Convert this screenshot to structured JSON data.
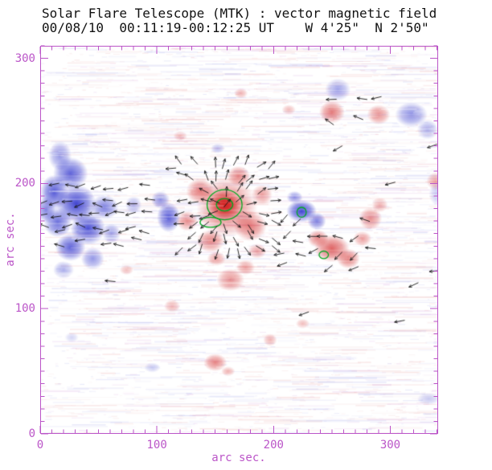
{
  "chart_data": {
    "type": "heatmap",
    "title": "Solar Flare Telescope (MTK) : vector magnetic field",
    "subtitle": "00/08/10  00:11:19-00:12:25 UT    W 4'25\"  N 2'50\"",
    "xlabel": "arc sec.",
    "ylabel": "arc sec.",
    "xlim": [
      0,
      341
    ],
    "ylim": [
      0,
      310
    ],
    "xticks": [
      0,
      100,
      200,
      300
    ],
    "yticks": [
      0,
      100,
      200,
      300
    ],
    "minor_tick_step": 10,
    "grid": false,
    "colors": {
      "axis": "#bb55c8",
      "title": "#111111",
      "positive_rgb": "210,35,35",
      "negative_rgb": "45,50,205",
      "contour": "#00a820",
      "vector": "#151515",
      "background": "#ffffff"
    },
    "blob_format": "[polarity p=positive(red)/n=negative(blue), x_arcsec, y_arcsec, rx_arcsec, ry_arcsec, intensity]",
    "blobs": [
      [
        "n",
        17,
        222,
        10,
        12,
        0.5
      ],
      [
        "n",
        26,
        208,
        15,
        13,
        0.75
      ],
      [
        "n",
        12,
        193,
        12,
        14,
        0.8
      ],
      [
        "n",
        31,
        184,
        17,
        15,
        0.9
      ],
      [
        "n",
        15,
        169,
        12,
        12,
        0.7
      ],
      [
        "n",
        41,
        164,
        15,
        13,
        0.85
      ],
      [
        "n",
        55,
        181,
        12,
        10,
        0.6
      ],
      [
        "n",
        26,
        149,
        13,
        11,
        0.75
      ],
      [
        "n",
        45,
        140,
        10,
        9,
        0.5
      ],
      [
        "n",
        20,
        131,
        9,
        7,
        0.4
      ],
      [
        "n",
        61,
        160,
        8,
        8,
        0.45
      ],
      [
        "n",
        5,
        179,
        8,
        10,
        0.6
      ],
      [
        "n",
        80,
        183,
        7,
        7,
        0.35
      ],
      [
        "n",
        110,
        173,
        10,
        12,
        0.8
      ],
      [
        "n",
        103,
        187,
        8,
        7,
        0.55
      ],
      [
        "n",
        224,
        178,
        13,
        9,
        0.9
      ],
      [
        "n",
        237,
        170,
        8,
        7,
        0.6
      ],
      [
        "n",
        218,
        189,
        7,
        5,
        0.5
      ],
      [
        "n",
        318,
        255,
        14,
        10,
        0.55
      ],
      [
        "n",
        332,
        243,
        9,
        8,
        0.4
      ],
      [
        "n",
        255,
        275,
        11,
        9,
        0.45
      ],
      [
        "n",
        341,
        192,
        8,
        10,
        0.3
      ],
      [
        "n",
        333,
        28,
        10,
        5,
        0.25
      ],
      [
        "n",
        27,
        77,
        6,
        4,
        0.2
      ],
      [
        "n",
        96,
        53,
        7,
        4,
        0.25
      ],
      [
        "n",
        152,
        228,
        6,
        4,
        0.3
      ],
      [
        "p",
        160,
        181,
        26,
        24,
        0.6
      ],
      [
        "p",
        158,
        183,
        14,
        12,
        0.85
      ],
      [
        "p",
        158,
        183,
        8,
        7,
        1.0
      ],
      [
        "p",
        137,
        194,
        12,
        10,
        0.6
      ],
      [
        "p",
        180,
        166,
        14,
        12,
        0.6
      ],
      [
        "p",
        146,
        154,
        12,
        9,
        0.55
      ],
      [
        "p",
        126,
        170,
        9,
        8,
        0.5
      ],
      [
        "p",
        170,
        206,
        10,
        8,
        0.55
      ],
      [
        "p",
        190,
        191,
        9,
        8,
        0.45
      ],
      [
        "p",
        151,
        140,
        8,
        6,
        0.4
      ],
      [
        "p",
        186,
        146,
        8,
        6,
        0.4
      ],
      [
        "p",
        163,
        123,
        12,
        9,
        0.5
      ],
      [
        "p",
        176,
        133,
        8,
        6,
        0.4
      ],
      [
        "p",
        250,
        148,
        15,
        11,
        0.7
      ],
      [
        "p",
        264,
        140,
        10,
        8,
        0.6
      ],
      [
        "p",
        238,
        156,
        9,
        7,
        0.55
      ],
      [
        "p",
        276,
        156,
        8,
        6,
        0.45
      ],
      [
        "p",
        283,
        172,
        10,
        9,
        0.5
      ],
      [
        "p",
        291,
        183,
        7,
        6,
        0.4
      ],
      [
        "p",
        250,
        257,
        11,
        9,
        0.6
      ],
      [
        "p",
        290,
        255,
        10,
        8,
        0.5
      ],
      [
        "p",
        213,
        259,
        6,
        4,
        0.3
      ],
      [
        "p",
        172,
        272,
        6,
        4,
        0.35
      ],
      [
        "p",
        150,
        57,
        10,
        7,
        0.55
      ],
      [
        "p",
        161,
        50,
        6,
        4,
        0.35
      ],
      [
        "p",
        197,
        75,
        6,
        5,
        0.35
      ],
      [
        "p",
        225,
        88,
        6,
        4,
        0.3
      ],
      [
        "p",
        113,
        102,
        7,
        5,
        0.35
      ],
      [
        "p",
        74,
        131,
        6,
        4,
        0.3
      ],
      [
        "p",
        339,
        202,
        8,
        7,
        0.4
      ],
      [
        "p",
        120,
        238,
        6,
        4,
        0.3
      ]
    ],
    "contour_format": "[x_arcsec, y_arcsec, rx_arcsec, ry_arcsec]",
    "contours": [
      [
        158,
        183,
        15,
        12
      ],
      [
        158,
        183,
        7,
        5
      ],
      [
        146,
        169,
        9,
        4
      ],
      [
        224,
        177,
        4,
        4
      ],
      [
        243,
        143,
        4,
        3
      ]
    ],
    "vector_regions": [
      {
        "x0": 3,
        "x1": 92,
        "y0": 153,
        "y1": 200,
        "step": 11,
        "mode": "h",
        "angle": 180,
        "jitter": 25,
        "skip": 0.2
      },
      {
        "x0": 120,
        "x1": 204,
        "y0": 146,
        "y1": 216,
        "step": 10,
        "mode": "radial",
        "cx": 158,
        "cy": 182,
        "jitter": 20,
        "skip": 0.12
      },
      {
        "x0": 208,
        "x1": 286,
        "y0": 133,
        "y1": 172,
        "step": 12,
        "mode": "h",
        "angle": 195,
        "jitter": 35,
        "skip": 0.35
      },
      {
        "x0": 246,
        "x1": 298,
        "y0": 250,
        "y1": 266,
        "step": 15,
        "mode": "h",
        "angle": 170,
        "jitter": 30,
        "skip": 0.5
      }
    ],
    "extra_vector_format": "[x_arcsec, y_arcsec, angle_deg]",
    "extra_vectors": [
      [
        320,
        119,
        205
      ],
      [
        308,
        90,
        190
      ],
      [
        226,
        96,
        200
      ],
      [
        338,
        130,
        185
      ],
      [
        300,
        200,
        195
      ],
      [
        112,
        212,
        185
      ],
      [
        60,
        122,
        175
      ],
      [
        336,
        230,
        200
      ],
      [
        255,
        228,
        210
      ]
    ]
  }
}
